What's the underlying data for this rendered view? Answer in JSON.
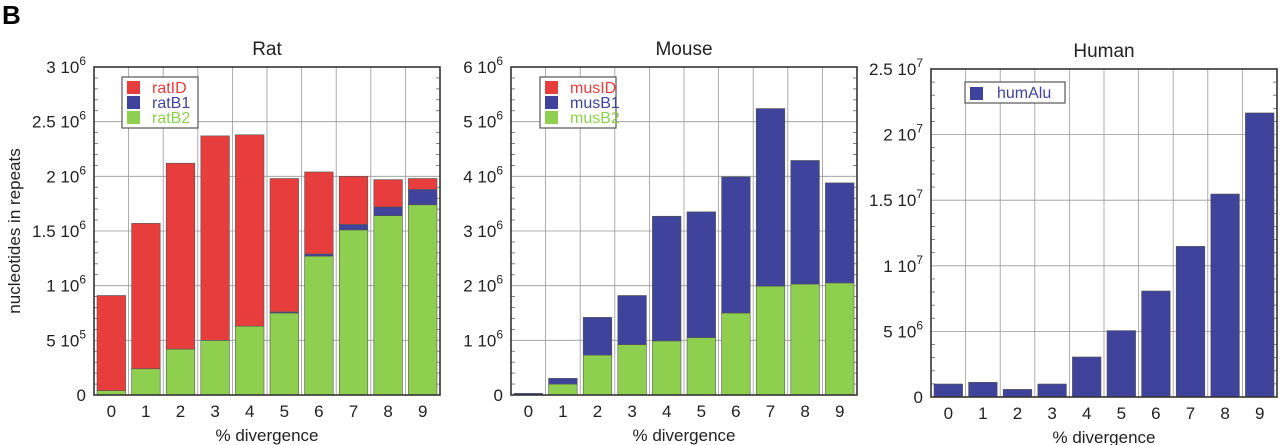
{
  "panel_label": "B",
  "colors": {
    "ID": "#e83d3d",
    "B1": "#3f439b",
    "B2": "#8fcf50",
    "Alu": "#3f439b"
  },
  "chart_data": [
    {
      "type": "bar",
      "stacked": true,
      "title": "Rat",
      "xlabel": "% divergence",
      "ylabel": "nucleotides in repeats",
      "categories": [
        "0",
        "1",
        "2",
        "3",
        "4",
        "5",
        "6",
        "7",
        "8",
        "9"
      ],
      "ylim": [
        0,
        3000000
      ],
      "yticks": [
        {
          "value": 0,
          "mant": "0",
          "exp": ""
        },
        {
          "value": 500000,
          "mant": "5 10",
          "exp": "5"
        },
        {
          "value": 1000000,
          "mant": "1 10",
          "exp": "6"
        },
        {
          "value": 1500000,
          "mant": "1.5 10",
          "exp": "6"
        },
        {
          "value": 2000000,
          "mant": "2 10",
          "exp": "6"
        },
        {
          "value": 2500000,
          "mant": "2.5 10",
          "exp": "6"
        },
        {
          "value": 3000000,
          "mant": "3 10",
          "exp": "6"
        }
      ],
      "grid": true,
      "legend_position": "top-left",
      "series": [
        {
          "name": "ratB2",
          "color": "#8fcf50",
          "values": [
            40000,
            240000,
            420000,
            500000,
            630000,
            750000,
            1270000,
            1510000,
            1640000,
            1740000
          ]
        },
        {
          "name": "ratB1",
          "color": "#3f439b",
          "values": [
            0,
            0,
            0,
            0,
            0,
            10000,
            20000,
            50000,
            80000,
            140000
          ]
        },
        {
          "name": "ratID",
          "color": "#e83d3d",
          "values": [
            870000,
            1330000,
            1700000,
            1870000,
            1750000,
            1220000,
            750000,
            440000,
            250000,
            100000
          ]
        }
      ],
      "legend_order": [
        "ratID",
        "ratB1",
        "ratB2"
      ]
    },
    {
      "type": "bar",
      "stacked": true,
      "title": "Mouse",
      "xlabel": "% divergence",
      "ylabel": "",
      "categories": [
        "0",
        "1",
        "2",
        "3",
        "4",
        "5",
        "6",
        "7",
        "8",
        "9"
      ],
      "ylim": [
        0,
        6000000
      ],
      "yticks": [
        {
          "value": 0,
          "mant": "0",
          "exp": ""
        },
        {
          "value": 1000000,
          "mant": "1 10",
          "exp": "6"
        },
        {
          "value": 2000000,
          "mant": "2 10",
          "exp": "6"
        },
        {
          "value": 3000000,
          "mant": "3 10",
          "exp": "6"
        },
        {
          "value": 4000000,
          "mant": "4 10",
          "exp": "6"
        },
        {
          "value": 5000000,
          "mant": "5 10",
          "exp": "6"
        },
        {
          "value": 6000000,
          "mant": "6 10",
          "exp": "6"
        }
      ],
      "grid": true,
      "legend_position": "top-left",
      "series": [
        {
          "name": "musB2",
          "color": "#8fcf50",
          "values": [
            0,
            200000,
            730000,
            920000,
            990000,
            1050000,
            1500000,
            1990000,
            2030000,
            2050000
          ]
        },
        {
          "name": "musB1",
          "color": "#3f439b",
          "values": [
            30000,
            105000,
            690000,
            900000,
            2280000,
            2300000,
            2490000,
            3250000,
            2260000,
            1830000
          ]
        },
        {
          "name": "musID",
          "color": "#e83d3d",
          "values": [
            0,
            0,
            0,
            0,
            0,
            0,
            0,
            0,
            0,
            0
          ]
        }
      ],
      "legend_order": [
        "musID",
        "musB1",
        "musB2"
      ]
    },
    {
      "type": "bar",
      "stacked": false,
      "title": "Human",
      "xlabel": "% divergence",
      "ylabel": "",
      "categories": [
        "0",
        "1",
        "2",
        "3",
        "4",
        "5",
        "6",
        "7",
        "8",
        "9"
      ],
      "ylim": [
        0,
        25000000
      ],
      "yticks": [
        {
          "value": 0,
          "mant": "0",
          "exp": ""
        },
        {
          "value": 5000000,
          "mant": "5 10",
          "exp": "6"
        },
        {
          "value": 10000000,
          "mant": "1 10",
          "exp": "7"
        },
        {
          "value": 15000000,
          "mant": "1.5 10",
          "exp": "7"
        },
        {
          "value": 20000000,
          "mant": "2 10",
          "exp": "7"
        },
        {
          "value": 25000000,
          "mant": "2.5 10",
          "exp": "7"
        }
      ],
      "grid": true,
      "legend_position": "top-left",
      "series": [
        {
          "name": "humAlu",
          "color": "#3f439b",
          "values": [
            990000,
            1120000,
            580000,
            990000,
            3050000,
            5060000,
            8080000,
            11480000,
            15470000,
            21650000
          ]
        }
      ],
      "legend_order": [
        "humAlu"
      ]
    }
  ]
}
